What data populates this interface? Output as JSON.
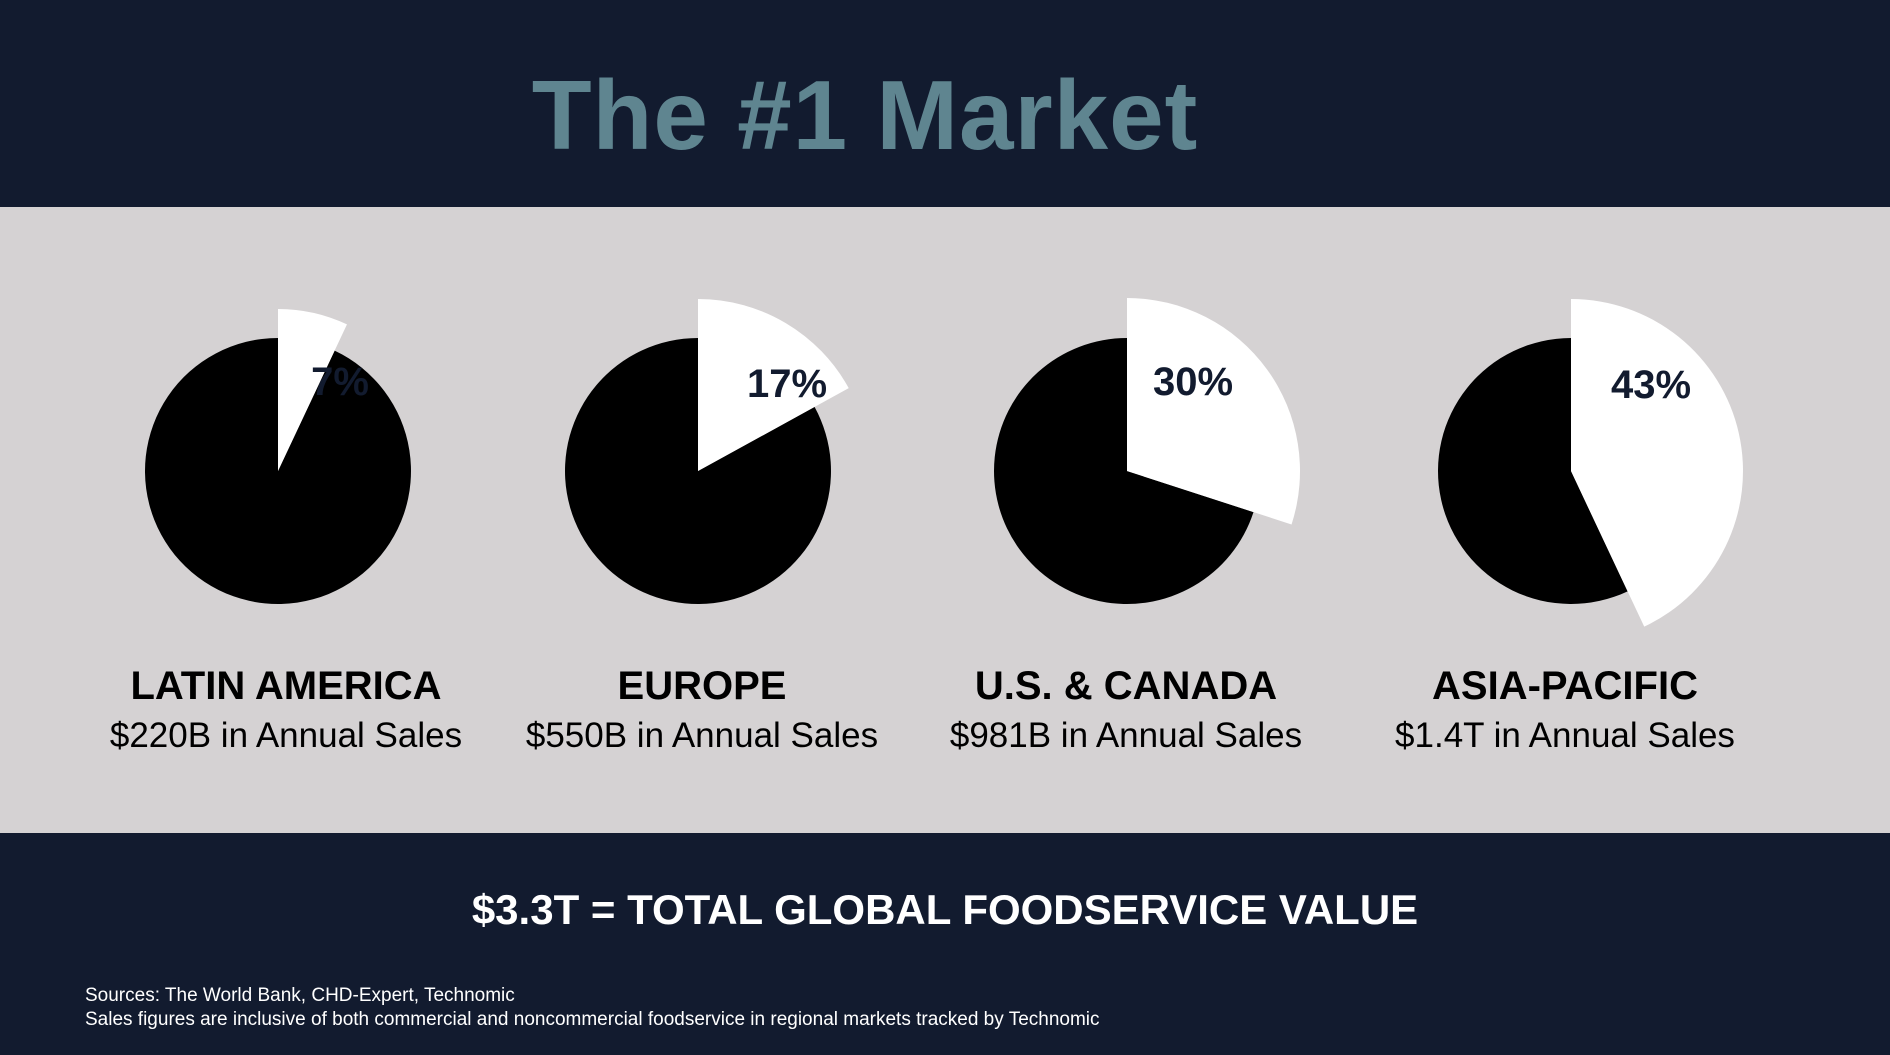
{
  "title": "The #1 Market",
  "colors": {
    "dark_band": "#121b2f",
    "light_band": "#d5d2d3",
    "title": "#5f8590",
    "pie_main": "#000000",
    "pie_slice": "#ffffff",
    "pie_label": "#121b2f"
  },
  "chart_data": {
    "type": "pie",
    "charts": [
      {
        "region": "LATIN AMERICA",
        "sales": "$220B in Annual Sales",
        "share_label": "7%",
        "share": 7
      },
      {
        "region": "EUROPE",
        "sales": "$550B in Annual Sales",
        "share_label": "17%",
        "share": 17
      },
      {
        "region": "U.S. & CANADA",
        "sales": "$981B in Annual Sales",
        "share_label": "30%",
        "share": 30
      },
      {
        "region": "ASIA-PACIFIC",
        "sales": "$1.4T in Annual Sales",
        "share_label": "43%",
        "share": 43
      }
    ]
  },
  "total": "$3.3T = TOTAL GLOBAL FOODSERVICE VALUE",
  "sources": {
    "line1": "Sources: The World Bank, CHD-Expert, Technomic",
    "line2": "Sales figures are inclusive of both commercial and noncommercial foodservice in regional markets tracked by Technomic"
  }
}
